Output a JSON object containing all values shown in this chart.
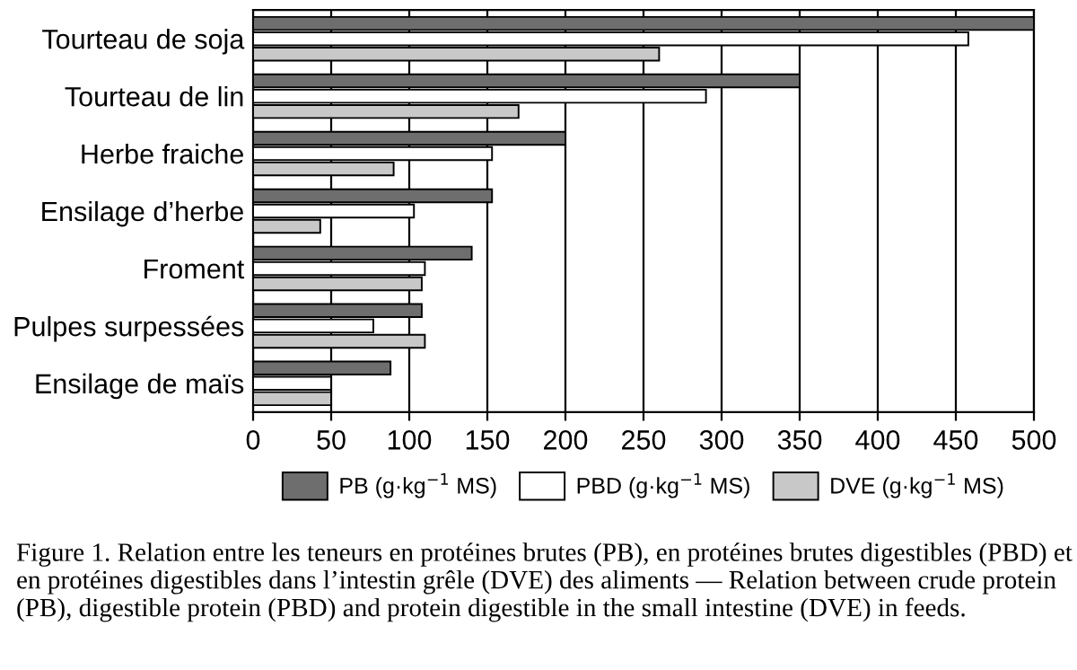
{
  "chart_data": {
    "type": "bar",
    "orientation": "horizontal",
    "categories": [
      "Tourteau de soja",
      "Tourteau de lin",
      "Herbe fraiche",
      "Ensilage d’herbe",
      "Froment",
      "Pulpes surpessées",
      "Ensilage de maïs"
    ],
    "series": [
      {
        "name": "PB (g·kg$^{−1}$ MS)",
        "color": "#6e6e6e",
        "values": [
          500,
          350,
          200,
          153,
          140,
          108,
          88
        ]
      },
      {
        "name": "PBD (g·kg$^{−1}$ MS)",
        "color": "#ffffff",
        "values": [
          458,
          290,
          153,
          103,
          110,
          77,
          50
        ]
      },
      {
        "name": "DVE (g·kg$^{−1}$ MS)",
        "color": "#c8c8c8",
        "values": [
          260,
          170,
          90,
          43,
          108,
          110,
          50
        ]
      }
    ],
    "xlim": [
      0,
      500
    ],
    "xticks": [
      0,
      50,
      100,
      150,
      200,
      250,
      300,
      350,
      400,
      450,
      500
    ],
    "grid": "x",
    "legend": "bottom",
    "annotations": [
      "Figure 1. Relation entre les teneurs en protéines brutes (PB), en protéines brutes digestibles (PBD) et en protéines digestibles dans l’intestin grêle (DVE) des aliments — Relation between crude protein (PB), digestible protein (PBD) and protein digestible in the small intestine (DVE) in feeds."
    ]
  }
}
